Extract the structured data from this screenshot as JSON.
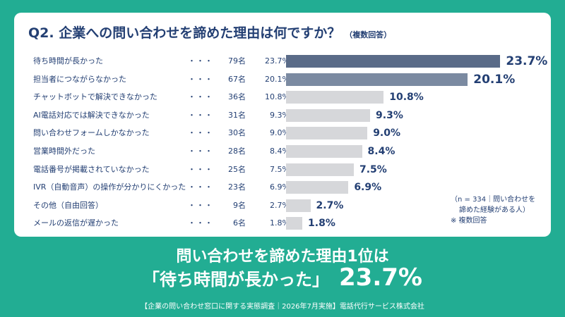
{
  "chart_data": {
    "type": "bar",
    "title": "Q2. 企業への問い合わせを諦めた理由は何ですか？",
    "title_note": "（複数回答）",
    "categories": [
      "待ち時間が長かった",
      "担当者につながらなかった",
      "チャットボットで解決できなかった",
      "AI電話対応では解決できなかった",
      "問い合わせフォームしかなかった",
      "営業時間外だった",
      "電話番号が掲載されていなかった",
      "IVR（自動音声）の操作が分かりにくかった",
      "その他（自由回答）",
      "メールの返信が遅かった"
    ],
    "counts": [
      "79名",
      "67名",
      "36名",
      "31名",
      "30名",
      "28名",
      "25名",
      "23名",
      "9名",
      "6名"
    ],
    "values": [
      23.7,
      20.1,
      10.8,
      9.3,
      9.0,
      8.4,
      7.5,
      6.9,
      2.7,
      1.8
    ],
    "value_labels": [
      "23.7%",
      "20.1%",
      "10.8%",
      "9.3%",
      "9.0%",
      "8.4%",
      "7.5%",
      "6.9%",
      "2.7%",
      "1.8%"
    ],
    "leader": "・・・",
    "xlim": [
      0,
      25
    ]
  },
  "colors": {
    "background": "#22ad93",
    "bar_top": "#5a6b88",
    "bar_second": "#7b8aa1",
    "bar_rest": "#d6d7da",
    "text": "#233f73"
  },
  "note_lines": [
    "（n = 334｜問い合わせを",
    "諦めた経験がある人）",
    "※ 複数回答"
  ],
  "headline": {
    "line1": "問い合わせを諦めた理由1位は",
    "quote": "「待ち時間が長かった」",
    "value": "23.7%"
  },
  "footer": "【企業の問い合わせ窓口に関する実態調査｜2026年7月実施】電話代行サービス株式会社"
}
